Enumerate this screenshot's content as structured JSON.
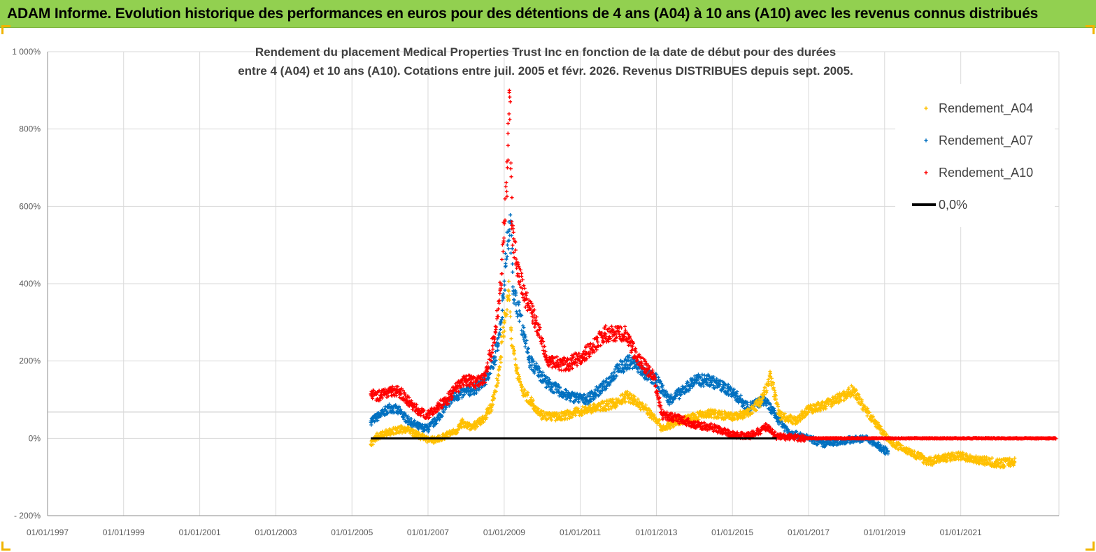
{
  "banner": {
    "title": "ADAM Informe. Evolution historique des performances en euros pour des détentions de 4 ans (A04) à 10 ans (A10) avec les revenus connus distribués"
  },
  "colors": {
    "banner": "#92d050",
    "corner_marks": "#f0b400",
    "gridline": "#d9d9d9",
    "series_A04": "#ffc000",
    "series_A07": "#0070c0",
    "series_A10": "#ff0000",
    "zero_line": "#000000"
  },
  "chart_data": {
    "type": "scatter",
    "title_lines": [
      "Rendement du placement Medical Properties Trust Inc en fonction de la date de début pour des durées",
      "entre 4 (A04) et 10 ans (A10). Cotations entre juil. 2005 et févr. 2026. Revenus DISTRIBUES depuis sept. 2005."
    ],
    "xlabel": "",
    "ylabel": "",
    "xlim": [
      "1997-01-01",
      "2023-08-01"
    ],
    "ylim": [
      -200,
      1000
    ],
    "x_ticks": [
      "01/01/1997",
      "01/01/1999",
      "01/01/2001",
      "01/01/2003",
      "01/01/2005",
      "01/01/2007",
      "01/01/2009",
      "01/01/2011",
      "01/01/2013",
      "01/01/2015",
      "01/01/2017",
      "01/01/2019",
      "01/01/2021"
    ],
    "y_ticks": [
      "- 200%",
      "0%",
      "200%",
      "400%",
      "600%",
      "800%",
      "1 000%"
    ],
    "y_tick_values": [
      -200,
      0,
      200,
      400,
      600,
      800,
      1000
    ],
    "grid": true,
    "legend_position": "top-right",
    "legend": [
      "Rendement_A04",
      "Rendement_A07",
      "Rendement_A10",
      "0,0%"
    ],
    "series": [
      {
        "name": "Rendement_A04",
        "color": "#ffc000",
        "points": [
          [
            "2005-07-01",
            -15
          ],
          [
            "2005-09-01",
            5
          ],
          [
            "2005-12-01",
            15
          ],
          [
            "2006-03-01",
            20
          ],
          [
            "2006-06-01",
            25
          ],
          [
            "2006-09-01",
            12
          ],
          [
            "2006-12-01",
            0
          ],
          [
            "2007-02-01",
            -5
          ],
          [
            "2007-05-01",
            0
          ],
          [
            "2007-08-01",
            12
          ],
          [
            "2007-10-01",
            20
          ],
          [
            "2007-12-01",
            40
          ],
          [
            "2008-03-01",
            30
          ],
          [
            "2008-06-01",
            45
          ],
          [
            "2008-09-01",
            80
          ],
          [
            "2008-11-01",
            150
          ],
          [
            "2009-01-01",
            300
          ],
          [
            "2009-02-15",
            380
          ],
          [
            "2009-03-15",
            240
          ],
          [
            "2009-05-01",
            180
          ],
          [
            "2009-07-01",
            120
          ],
          [
            "2009-10-01",
            90
          ],
          [
            "2010-01-01",
            60
          ],
          [
            "2010-06-01",
            55
          ],
          [
            "2011-01-01",
            70
          ],
          [
            "2011-06-01",
            80
          ],
          [
            "2011-12-01",
            90
          ],
          [
            "2012-04-01",
            110
          ],
          [
            "2012-09-01",
            80
          ],
          [
            "2013-01-01",
            50
          ],
          [
            "2013-03-01",
            25
          ],
          [
            "2013-08-01",
            45
          ],
          [
            "2014-01-01",
            55
          ],
          [
            "2014-06-01",
            65
          ],
          [
            "2015-01-01",
            55
          ],
          [
            "2015-06-01",
            65
          ],
          [
            "2015-10-01",
            95
          ],
          [
            "2016-01-01",
            160
          ],
          [
            "2016-04-01",
            60
          ],
          [
            "2016-09-01",
            45
          ],
          [
            "2017-01-01",
            75
          ],
          [
            "2017-06-01",
            85
          ],
          [
            "2017-12-01",
            110
          ],
          [
            "2018-03-01",
            125
          ],
          [
            "2018-07-01",
            75
          ],
          [
            "2018-11-01",
            30
          ],
          [
            "2019-03-01",
            -10
          ],
          [
            "2019-08-01",
            -30
          ],
          [
            "2020-03-01",
            -60
          ],
          [
            "2020-08-01",
            -50
          ],
          [
            "2021-01-01",
            -45
          ],
          [
            "2021-06-01",
            -55
          ],
          [
            "2022-01-01",
            -65
          ],
          [
            "2022-06-01",
            -60
          ]
        ]
      },
      {
        "name": "Rendement_A07",
        "color": "#0070c0",
        "points": [
          [
            "2005-07-01",
            45
          ],
          [
            "2005-10-01",
            60
          ],
          [
            "2006-01-01",
            80
          ],
          [
            "2006-04-01",
            70
          ],
          [
            "2006-07-01",
            45
          ],
          [
            "2006-10-01",
            30
          ],
          [
            "2007-01-01",
            25
          ],
          [
            "2007-04-01",
            50
          ],
          [
            "2007-07-01",
            90
          ],
          [
            "2007-10-01",
            110
          ],
          [
            "2008-01-01",
            120
          ],
          [
            "2008-04-01",
            130
          ],
          [
            "2008-07-01",
            150
          ],
          [
            "2008-10-01",
            200
          ],
          [
            "2008-12-01",
            300
          ],
          [
            "2009-02-01",
            500
          ],
          [
            "2009-03-01",
            560
          ],
          [
            "2009-04-01",
            380
          ],
          [
            "2009-06-01",
            320
          ],
          [
            "2009-09-01",
            200
          ],
          [
            "2009-12-01",
            170
          ],
          [
            "2010-03-01",
            140
          ],
          [
            "2010-09-01",
            110
          ],
          [
            "2011-03-01",
            100
          ],
          [
            "2011-08-01",
            130
          ],
          [
            "2012-01-01",
            180
          ],
          [
            "2012-05-01",
            200
          ],
          [
            "2012-09-01",
            170
          ],
          [
            "2013-01-01",
            150
          ],
          [
            "2013-05-01",
            100
          ],
          [
            "2013-09-01",
            120
          ],
          [
            "2014-01-01",
            150
          ],
          [
            "2014-06-01",
            150
          ],
          [
            "2015-01-01",
            120
          ],
          [
            "2015-06-01",
            80
          ],
          [
            "2015-11-01",
            100
          ],
          [
            "2016-03-01",
            55
          ],
          [
            "2016-07-01",
            15
          ],
          [
            "2017-01-01",
            0
          ],
          [
            "2017-06-01",
            -15
          ],
          [
            "2018-01-01",
            -5
          ],
          [
            "2018-07-01",
            0
          ],
          [
            "2018-11-01",
            -20
          ],
          [
            "2019-02-01",
            -35
          ]
        ]
      },
      {
        "name": "Rendement_A10",
        "color": "#ff0000",
        "points": [
          [
            "2005-07-01",
            115
          ],
          [
            "2005-10-01",
            110
          ],
          [
            "2006-01-01",
            125
          ],
          [
            "2006-04-01",
            120
          ],
          [
            "2006-07-01",
            95
          ],
          [
            "2006-10-01",
            70
          ],
          [
            "2007-01-01",
            60
          ],
          [
            "2007-04-01",
            80
          ],
          [
            "2007-07-01",
            100
          ],
          [
            "2007-10-01",
            130
          ],
          [
            "2008-01-01",
            150
          ],
          [
            "2008-04-01",
            145
          ],
          [
            "2008-07-01",
            160
          ],
          [
            "2008-10-01",
            260
          ],
          [
            "2008-12-01",
            400
          ],
          [
            "2009-02-01",
            700
          ],
          [
            "2009-02-20",
            900
          ],
          [
            "2009-03-15",
            560
          ],
          [
            "2009-05-01",
            440
          ],
          [
            "2009-08-01",
            360
          ],
          [
            "2009-11-01",
            300
          ],
          [
            "2010-03-01",
            200
          ],
          [
            "2010-09-01",
            190
          ],
          [
            "2011-03-01",
            220
          ],
          [
            "2011-09-01",
            270
          ],
          [
            "2012-03-01",
            270
          ],
          [
            "2012-07-01",
            210
          ],
          [
            "2012-12-01",
            160
          ],
          [
            "2013-03-01",
            60
          ],
          [
            "2013-08-01",
            50
          ],
          [
            "2014-01-01",
            35
          ],
          [
            "2014-06-01",
            30
          ],
          [
            "2015-01-01",
            10
          ],
          [
            "2015-06-01",
            5
          ],
          [
            "2015-12-01",
            30
          ],
          [
            "2016-03-01",
            5
          ],
          [
            "2017-01-01",
            0
          ],
          [
            "2018-01-01",
            0
          ],
          [
            "2019-01-01",
            0
          ],
          [
            "2020-01-01",
            0
          ],
          [
            "2021-01-01",
            0
          ],
          [
            "2022-01-01",
            0
          ],
          [
            "2023-07-01",
            0
          ]
        ]
      },
      {
        "name": "0,0%",
        "color": "#000000",
        "points": [
          [
            "2005-07-01",
            0
          ],
          [
            "2016-03-01",
            0
          ]
        ]
      }
    ]
  }
}
